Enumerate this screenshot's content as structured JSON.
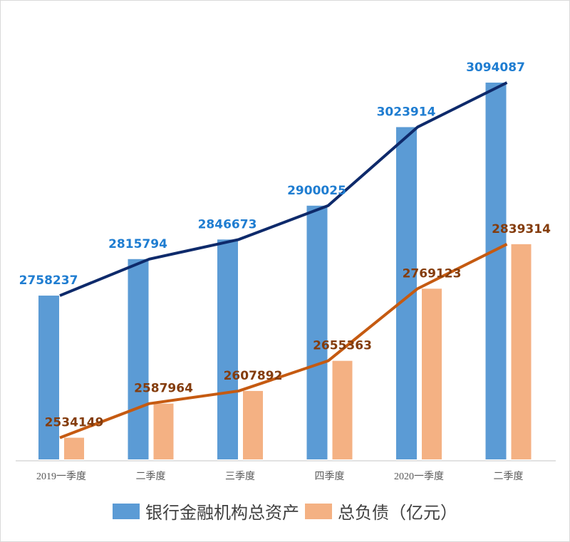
{
  "chart_data": {
    "type": "bar",
    "categories": [
      "2019一季度",
      "二季度",
      "三季度",
      "四季度",
      "2020一季度",
      "二季度"
    ],
    "series": [
      {
        "name": "银行金融机构总资产",
        "values": [
          2758237,
          2815794,
          2846673,
          2900025,
          3023914,
          3094087
        ],
        "color": "#5B9BD5",
        "line_color": "#0E2A6B",
        "label_color": "#1F7DD1"
      },
      {
        "name": "总负债（亿元）",
        "values": [
          2534149,
          2587964,
          2607892,
          2655363,
          2769123,
          2839314
        ],
        "color": "#F4B183",
        "line_color": "#C55A11",
        "label_color": "#843C0C"
      }
    ],
    "data_labels": {
      "assets": [
        "2758237",
        "2815794",
        "2846673",
        "2900025",
        "3023914",
        "3094087"
      ],
      "liabilities": [
        "2534149",
        "2587964",
        "2607892",
        "2655363",
        "2769123",
        "2839314"
      ]
    },
    "ylim": [
      2500000,
      3100000
    ],
    "y_axis_visible": false,
    "grid": false,
    "legend": "bottom",
    "overlay_lines": true
  }
}
